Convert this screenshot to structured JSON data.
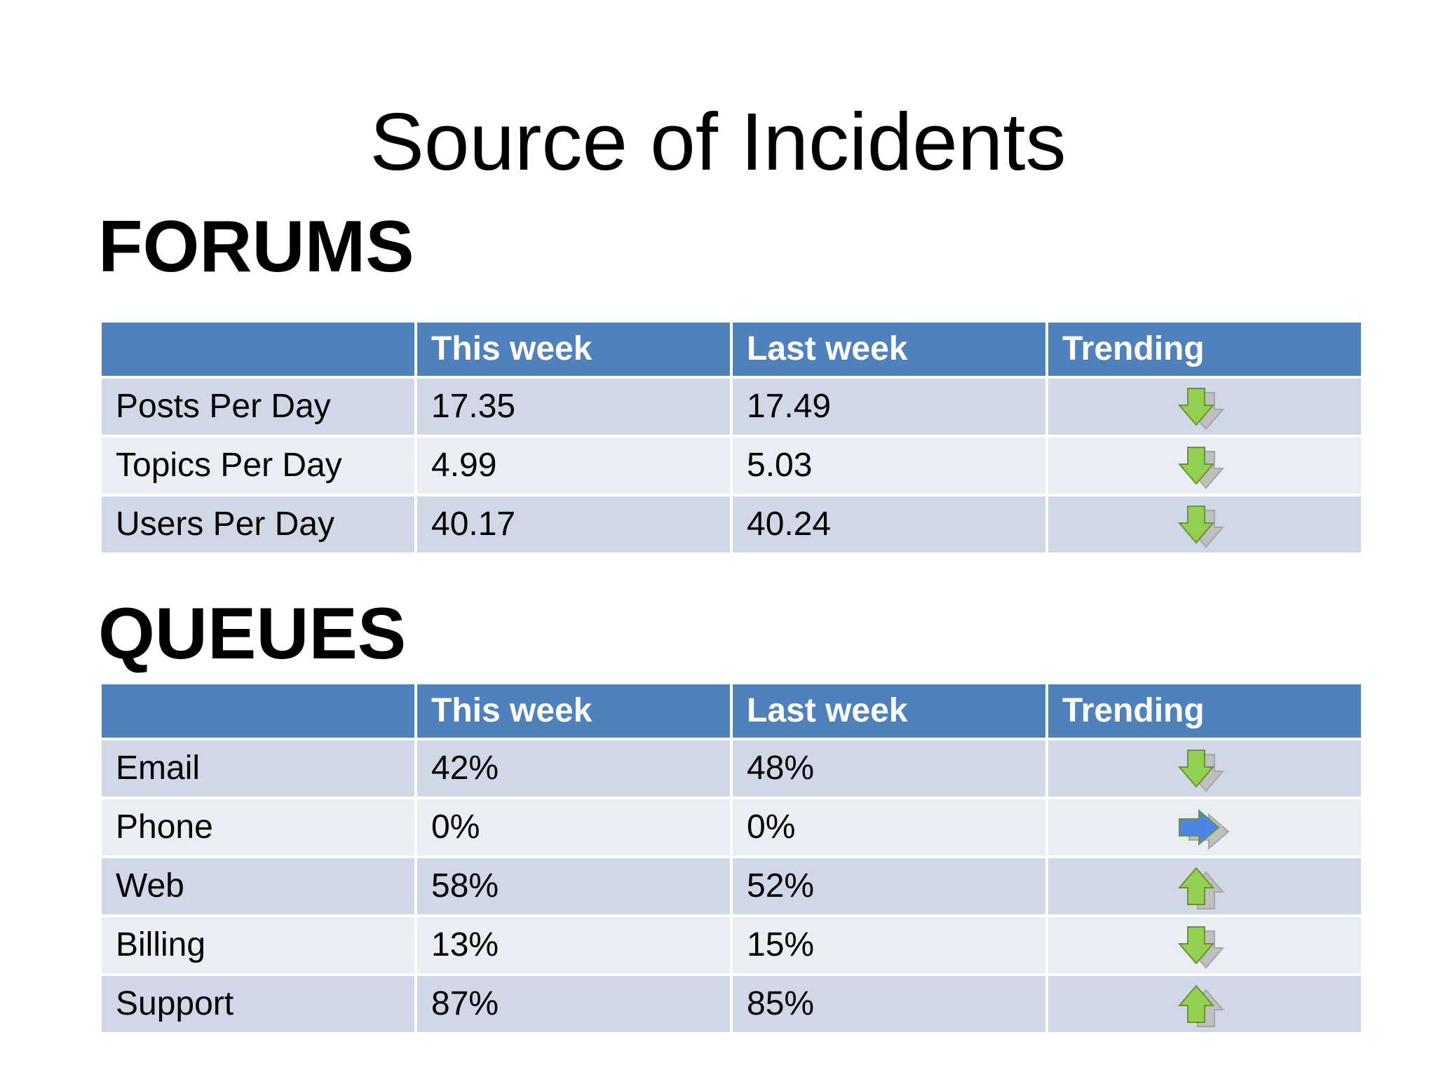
{
  "title": "Source of Incidents",
  "sections": {
    "forums": {
      "heading": "FORUMS",
      "headers": [
        "",
        "This week",
        "Last week",
        "Trending"
      ],
      "rows": [
        {
          "label": "Posts Per Day",
          "this_week": "17.35",
          "last_week": "17.49",
          "trend": "down-arrow-icon"
        },
        {
          "label": "Topics Per Day",
          "this_week": "4.99",
          "last_week": "5.03",
          "trend": "down-arrow-icon"
        },
        {
          "label": "Users Per Day",
          "this_week": "40.17",
          "last_week": "40.24",
          "trend": "down-arrow-icon"
        }
      ]
    },
    "queues": {
      "heading": "QUEUES",
      "headers": [
        "",
        "This week",
        "Last week",
        "Trending"
      ],
      "rows": [
        {
          "label": "Email",
          "this_week": "42%",
          "last_week": "48%",
          "trend": "down-arrow-icon"
        },
        {
          "label": "Phone",
          "this_week": "0%",
          "last_week": "0%",
          "trend": "right-arrow-icon"
        },
        {
          "label": "Web",
          "this_week": "58%",
          "last_week": "52%",
          "trend": "up-arrow-icon"
        },
        {
          "label": "Billing",
          "this_week": "13%",
          "last_week": "15%",
          "trend": "down-arrow-icon"
        },
        {
          "label": "Support",
          "this_week": "87%",
          "last_week": "85%",
          "trend": "up-arrow-icon"
        }
      ]
    }
  },
  "colors": {
    "header_bg": "#4f81bd",
    "row_odd_bg": "#d0d8e8",
    "row_even_bg": "#e9edf4",
    "arrow_green": "#92d050",
    "arrow_blue": "#4a86e8",
    "arrow_shadow": "#bfbfbf"
  }
}
